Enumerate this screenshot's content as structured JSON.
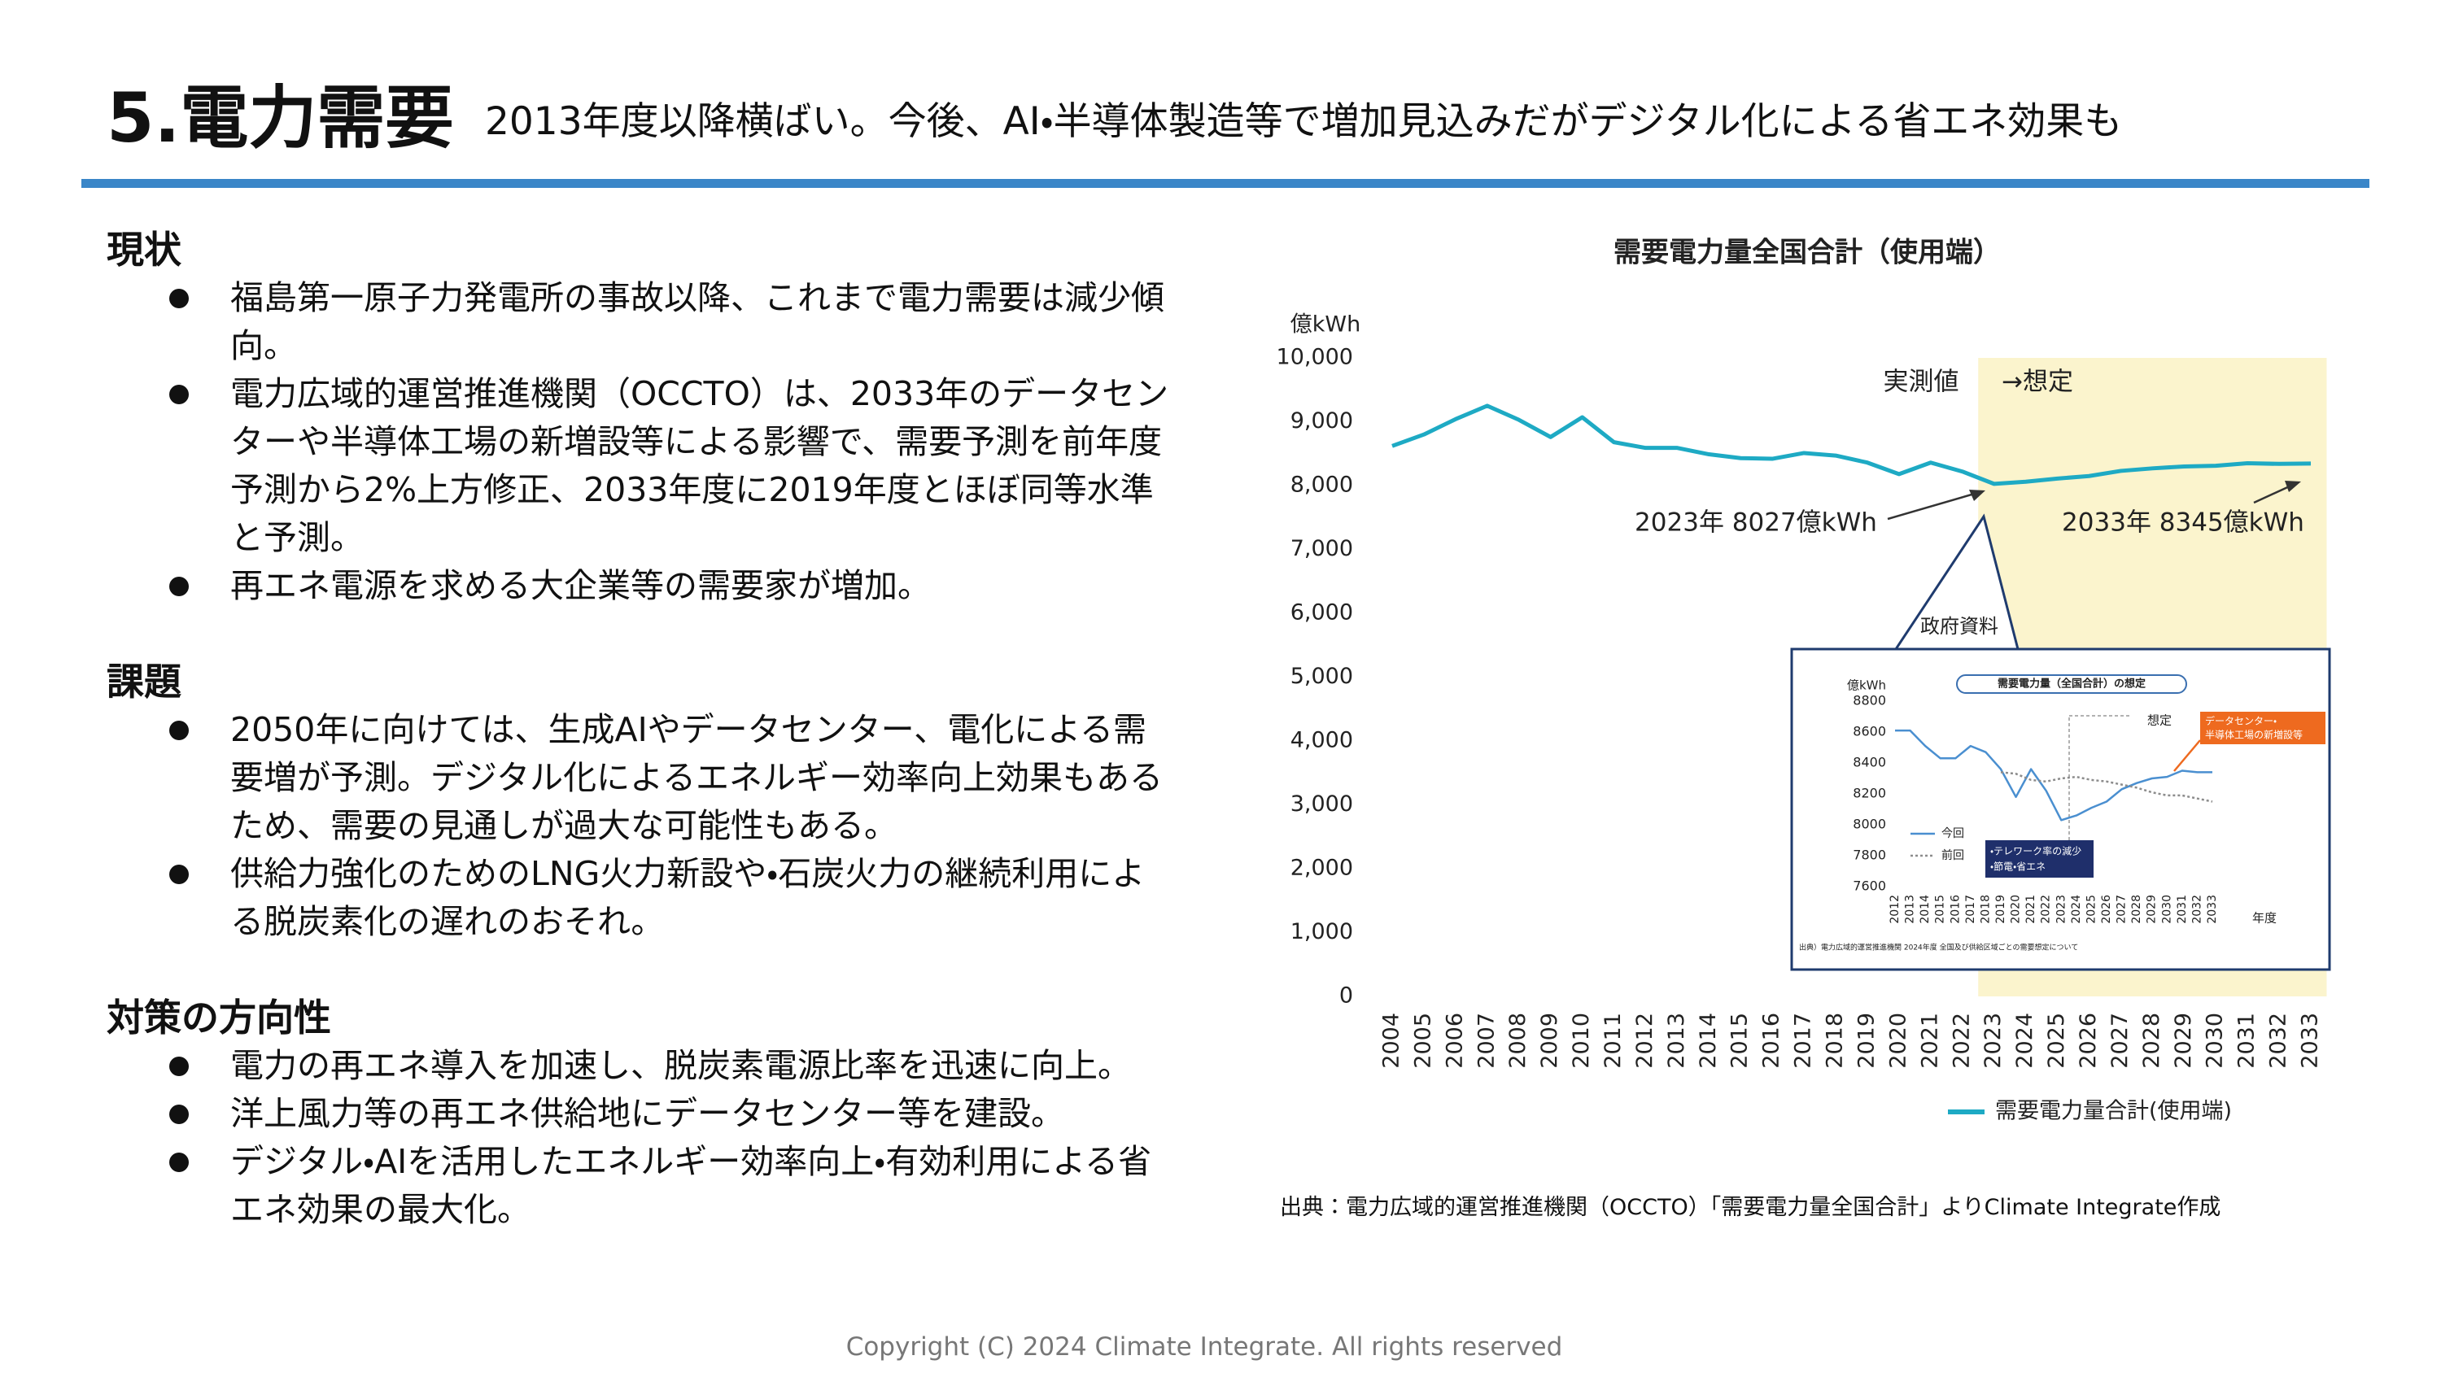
{
  "header": {
    "title": "5.電力需要",
    "subtitle": "2013年度以降横ばい。今後、AI・半導体製造等で増加見込みだがデジタル化による省エネ効果も"
  },
  "sections": [
    {
      "heading": "現状",
      "bullets": [
        "福島第一原子力発電所の事故以降、これまで電力需要は減少傾向。",
        "電力広域的運営推進機関（OCCTO）は、2033年のデータセンターや半導体工場の新増設等による影響で、需要予測を前年度予測から2%上方修正、2033年度に2019年度とほぼ同等水準と予測。",
        "再エネ電源を求める大企業等の需要家が増加。"
      ]
    },
    {
      "heading": "課題",
      "bullets": [
        "2050年に向けては、生成AIやデータセンター、電化による需要増が予測。デジタル化によるエネルギー効率向上効果もあるため、需要の見通しが過大な可能性もある。",
        "供給力強化のためのLNG火力新設や・石炭火力の継続利用による脱炭素化の遅れのおそれ。"
      ]
    },
    {
      "heading": "対策の方向性",
      "bullets": [
        "電力の再エネ導入を加速し、脱炭素電源比率を迅速に向上。",
        "洋上風力等の再エネ供給地にデータセンター等を建設。",
        "デジタル・AIを活用したエネルギー効率向上・有効利用による省エネ効果の最大化。"
      ]
    }
  ],
  "source": "出典：電力広域的運営推進機関（OCCTO）「需要電力量全国合計」よりClimate Integrate作成",
  "footer": "Copyright (C) 2024 Climate Integrate. All rights reserved",
  "chart_data": [
    {
      "type": "line",
      "title": "需要電力量全国合計（使用端）",
      "y_unit": "億kWh",
      "categories": [
        "2004",
        "2005",
        "2006",
        "2007",
        "2008",
        "2009",
        "2010",
        "2011",
        "2012",
        "2013",
        "2014",
        "2015",
        "2016",
        "2017",
        "2018",
        "2019",
        "2020",
        "2021",
        "2022",
        "2023",
        "2024",
        "2025",
        "2026",
        "2027",
        "2028",
        "2029",
        "2030",
        "2031",
        "2032",
        "2033"
      ],
      "series": [
        {
          "name": "需要電力量合計(使用端)",
          "color": "#1eaac4",
          "values": [
            8620,
            8800,
            9040,
            9250,
            9030,
            8760,
            9070,
            8680,
            8590,
            8590,
            8490,
            8430,
            8420,
            8510,
            8470,
            8360,
            8180,
            8360,
            8220,
            8027,
            8060,
            8110,
            8150,
            8230,
            8270,
            8300,
            8310,
            8350,
            8340,
            8345
          ]
        }
      ],
      "highlight": {
        "from": "2023",
        "to": "2033",
        "color": "#fbf4cd"
      },
      "ylim": [
        0,
        10000
      ],
      "yticks": [
        0,
        {
          "value": 1000,
          "label": "1,000"
        },
        {
          "value": 2000,
          "label": "2,000"
        },
        {
          "value": 3000,
          "label": "3,000"
        },
        {
          "value": 4000,
          "label": "4,000"
        },
        {
          "value": 5000,
          "label": "5,000"
        },
        {
          "value": 6000,
          "label": "6,000"
        },
        {
          "value": 7000,
          "label": "7,000"
        },
        {
          "value": 8000,
          "label": "8,000"
        },
        {
          "value": 9000,
          "label": "9,000"
        },
        {
          "value": 10000,
          "label": "10,000"
        }
      ],
      "grid": false,
      "annotations": [
        "実測値",
        "→想定",
        "2023年 8027億kWh",
        "2033年 8345億kWh",
        "政府資料"
      ]
    },
    {
      "type": "line",
      "title": "需要電力量（全国合計）の想定",
      "y_unit": "億kWh",
      "x_label": "年度",
      "categories": [
        "2012",
        "2013",
        "2014",
        "2015",
        "2016",
        "2017",
        "2018",
        "2019",
        "2020",
        "2021",
        "2022",
        "2023",
        "2024",
        "2025",
        "2026",
        "2027",
        "2028",
        "2029",
        "2030",
        "2031",
        "2032",
        "2033"
      ],
      "series": [
        {
          "name": "今回",
          "color": "#4a8fd0",
          "dashed": false,
          "values": [
            8610,
            8610,
            8510,
            8430,
            8430,
            8510,
            8470,
            8360,
            8180,
            8360,
            8220,
            8030,
            8060,
            8110,
            8150,
            8230,
            8270,
            8300,
            8310,
            8350,
            8340,
            8340
          ]
        },
        {
          "name": "前回",
          "color": "#8c8c8c",
          "dashed": true,
          "values": [
            null,
            null,
            null,
            null,
            null,
            null,
            null,
            8340,
            8330,
            8290,
            8280,
            8300,
            8310,
            8290,
            8280,
            8260,
            8240,
            8210,
            8190,
            8190,
            8170,
            8150
          ]
        }
      ],
      "ylim": [
        7600,
        8800
      ],
      "yticks": [
        7600,
        7800,
        8000,
        8200,
        8400,
        8600,
        8800
      ],
      "grid": false,
      "annotations": [
        "想定",
        "データセンター・",
        "半導体工場の新増設等",
        "・テレワーク率の減少",
        "・節電・省エネ",
        "出典）電力広域的運営推進機関 2024年度 全国及び供給区域ごとの需要想定について"
      ]
    }
  ]
}
